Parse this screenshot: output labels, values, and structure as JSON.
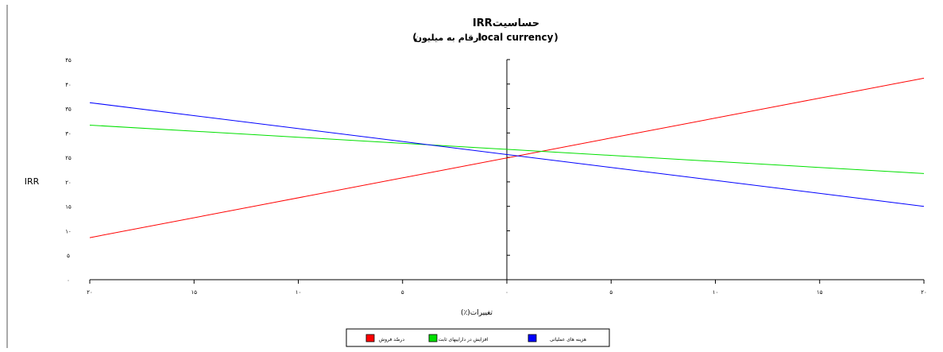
{
  "chart_data": {
    "type": "line",
    "title": "حساسیتIRR",
    "subtitle_main": "local currency",
    "subtitle_rest": "ارقام به میلیون",
    "subtitle_open": "(",
    "subtitle_close": ")",
    "ylabel": "IRR",
    "xlabel": "تغییرات(٪)",
    "x": [
      -20,
      20
    ],
    "ylim": [
      0,
      45
    ],
    "xlim": [
      -20,
      20
    ],
    "x_ticks": [
      -20,
      -15,
      -10,
      -5,
      0,
      5,
      10,
      15,
      20
    ],
    "x_tick_labels": [
      "۲۰",
      "۱۵",
      "۱۰",
      "۵",
      "۰",
      "۵",
      "۱۰",
      "۱۵",
      "۲۰"
    ],
    "y_ticks": [
      0,
      5,
      10,
      15,
      20,
      25,
      30,
      35,
      40,
      45
    ],
    "y_tick_labels": [
      "۰",
      "۵",
      "۱۰",
      "۱۵",
      "۲۰",
      "۲۵",
      "۳۰",
      "۳۵",
      "۴۰",
      "۴۵"
    ],
    "series": [
      {
        "name": "درصّد فروش",
        "color": "#ff0000",
        "values": [
          8.6,
          41.2
        ]
      },
      {
        "name": "افزایش در داراییهای ثابت",
        "color": "#00e000",
        "values": [
          31.6,
          21.7
        ]
      },
      {
        "name": "هزینه های عملیاتی",
        "color": "#0000ff",
        "values": [
          36.2,
          15.0
        ]
      }
    ],
    "grid": false,
    "legend_placement": "bottom-center"
  }
}
